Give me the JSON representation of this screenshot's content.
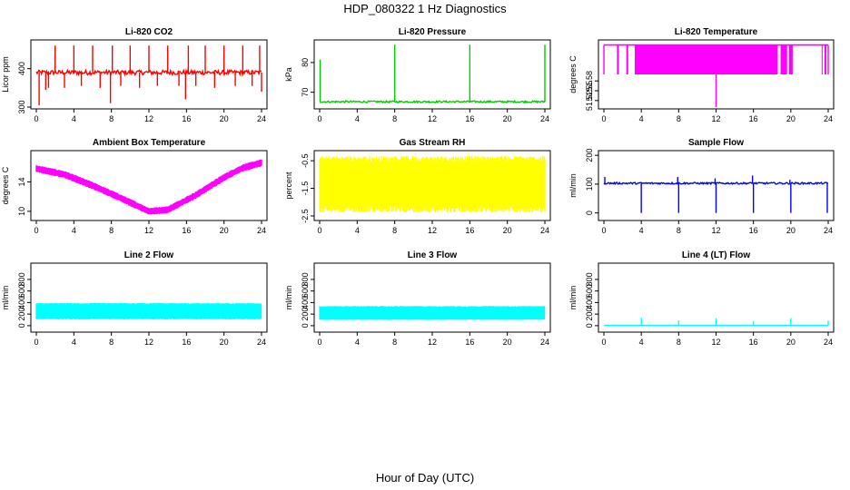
{
  "figure": {
    "title": "HDP_080322  1 Hz Diagnostics",
    "xlabel": "Hour of Day (UTC)",
    "x_ticks": [
      0,
      4,
      8,
      12,
      16,
      20,
      24
    ]
  },
  "colors": {
    "red": "#ff0000",
    "green": "#00cc00",
    "magenta": "#ff00ff",
    "yellow": "#ffff00",
    "blue": "#0000ff",
    "cyan": "#00ffff",
    "axis": "#000000"
  },
  "chart_data": [
    {
      "type": "line",
      "title": "Li-820 CO2",
      "ylabel": "Licor ppm",
      "xlim": [
        0,
        24
      ],
      "ylim": [
        300,
        470
      ],
      "yticks": [
        300,
        400
      ],
      "color": "red",
      "baseline": 390,
      "noise": 6,
      "spikes": [
        {
          "x": 1.0,
          "y": 345
        },
        {
          "x": 1.3,
          "y": 350
        },
        {
          "x": 2.0,
          "y": 460
        },
        {
          "x": 3.0,
          "y": 350
        },
        {
          "x": 4.0,
          "y": 460
        },
        {
          "x": 4.8,
          "y": 355
        },
        {
          "x": 6.0,
          "y": 460
        },
        {
          "x": 6.8,
          "y": 350
        },
        {
          "x": 7.9,
          "y": 310
        },
        {
          "x": 8.1,
          "y": 460
        },
        {
          "x": 9.0,
          "y": 355
        },
        {
          "x": 10.0,
          "y": 460
        },
        {
          "x": 11.0,
          "y": 350
        },
        {
          "x": 12.0,
          "y": 460
        },
        {
          "x": 12.9,
          "y": 355
        },
        {
          "x": 14.0,
          "y": 460
        },
        {
          "x": 15.2,
          "y": 355
        },
        {
          "x": 15.9,
          "y": 320
        },
        {
          "x": 16.2,
          "y": 460
        },
        {
          "x": 17.0,
          "y": 355
        },
        {
          "x": 18.0,
          "y": 460
        },
        {
          "x": 19.0,
          "y": 350
        },
        {
          "x": 20.0,
          "y": 460
        },
        {
          "x": 21.2,
          "y": 355
        },
        {
          "x": 22.0,
          "y": 460
        },
        {
          "x": 23.0,
          "y": 355
        },
        {
          "x": 23.8,
          "y": 460
        },
        {
          "x": 24.0,
          "y": 340
        },
        {
          "x": 0.3,
          "y": 305
        }
      ]
    },
    {
      "type": "line",
      "title": "Li-820 Pressure",
      "ylabel": "kPa",
      "xlim": [
        0,
        24
      ],
      "ylim": [
        65,
        87
      ],
      "yticks": [
        70,
        80
      ],
      "color": "green",
      "baseline": 66.8,
      "noise": 0.3,
      "spikes": [
        {
          "x": 0.05,
          "y": 81
        },
        {
          "x": 8.0,
          "y": 86
        },
        {
          "x": 16.0,
          "y": 86
        },
        {
          "x": 24.0,
          "y": 86
        }
      ]
    },
    {
      "type": "band",
      "title": "Li-820 Temperature",
      "ylabel": "degrees C",
      "xlim": [
        0,
        24
      ],
      "ylim": [
        51.5,
        51.7
      ],
      "yticks": [
        51.52,
        51.55,
        51.58
      ],
      "color": "magenta",
      "top": 51.69,
      "bottom": 51.6,
      "segments": [
        [
          1.4,
          1.6
        ],
        [
          2.4,
          2.6
        ],
        [
          3.3,
          18.6
        ],
        [
          18.9,
          19.6
        ],
        [
          19.8,
          20.2
        ],
        [
          23.3,
          23.4
        ],
        [
          23.6,
          23.8
        ]
      ],
      "spikes": [
        {
          "x": 12.0,
          "y": 51.5
        }
      ]
    },
    {
      "type": "band",
      "title": "Ambient Box Temperature",
      "ylabel": "degrees C",
      "xlim": [
        0,
        24
      ],
      "ylim": [
        9,
        18
      ],
      "yticks": [
        10,
        14
      ],
      "color": "magenta",
      "curve_x": [
        0,
        3,
        6,
        9,
        12,
        14,
        17,
        20,
        22,
        24
      ],
      "curve_y": [
        15.8,
        15.0,
        13.5,
        11.8,
        10.0,
        10.2,
        12.2,
        14.6,
        15.9,
        16.6
      ],
      "width": 1.0
    },
    {
      "type": "band",
      "title": "Gas Stream RH",
      "ylabel": "percent",
      "xlim": [
        0,
        24
      ],
      "ylim": [
        -2.6,
        -0.2
      ],
      "yticks": [
        -2.5,
        -1.5,
        -0.5
      ],
      "color": "yellow",
      "top": -0.5,
      "bottom": -2.2,
      "jitter": 0.25
    },
    {
      "type": "line",
      "title": "Sample Flow",
      "ylabel": "ml/min",
      "xlim": [
        0,
        24
      ],
      "ylim": [
        -20,
        210
      ],
      "yticks": [
        0,
        100,
        200
      ],
      "color": "blue",
      "baseline": 103,
      "noise": 3,
      "spikes": [
        {
          "x": 0.1,
          "y": 125
        },
        {
          "x": 4.0,
          "y": 0
        },
        {
          "x": 7.9,
          "y": 125
        },
        {
          "x": 8.0,
          "y": 0
        },
        {
          "x": 11.9,
          "y": 120
        },
        {
          "x": 12.0,
          "y": 0
        },
        {
          "x": 15.9,
          "y": 130
        },
        {
          "x": 16.0,
          "y": 0
        },
        {
          "x": 19.9,
          "y": 115
        },
        {
          "x": 20.0,
          "y": 0
        },
        {
          "x": 23.9,
          "y": 0
        }
      ]
    },
    {
      "type": "band",
      "title": "Line 2 Flow",
      "ylabel": "ml/min",
      "xlim": [
        0,
        24
      ],
      "ylim": [
        -80,
        1050
      ],
      "yticks": [
        0,
        200,
        400,
        600,
        800
      ],
      "color": "cyan",
      "top": 380,
      "bottom": 120,
      "jitter": 15,
      "gaps": [
        4.0,
        8.0,
        12.0,
        16.0,
        20.0,
        24.0
      ]
    },
    {
      "type": "band",
      "title": "Line 3 Flow",
      "ylabel": "ml/min",
      "xlim": [
        0,
        24
      ],
      "ylim": [
        -80,
        1050
      ],
      "yticks": [
        0,
        200,
        400,
        600,
        800
      ],
      "color": "cyan",
      "top": 330,
      "bottom": 110,
      "jitter": 15,
      "gaps": [
        4.0,
        8.0,
        12.0,
        16.0,
        20.0,
        24.0
      ]
    },
    {
      "type": "line",
      "title": "Line 4 (LT) Flow",
      "ylabel": "ml/min",
      "xlim": [
        0,
        24
      ],
      "ylim": [
        -80,
        1050
      ],
      "yticks": [
        0,
        200,
        400,
        600,
        800
      ],
      "color": "cyan",
      "baseline": 5,
      "noise": 1,
      "spikes": [
        {
          "x": 4.0,
          "y": 140
        },
        {
          "x": 8.0,
          "y": 90
        },
        {
          "x": 12.0,
          "y": 130
        },
        {
          "x": 16.0,
          "y": 80
        },
        {
          "x": 20.0,
          "y": 130
        },
        {
          "x": 24.0,
          "y": 90
        }
      ]
    }
  ]
}
